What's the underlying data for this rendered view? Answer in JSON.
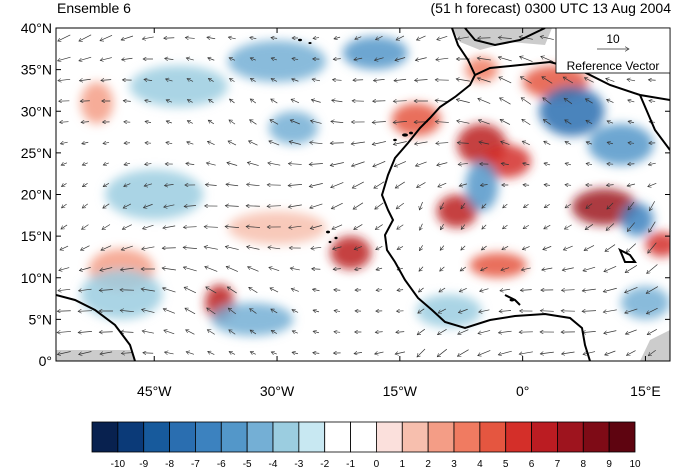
{
  "title_left": "Ensemble 6",
  "title_right": "(51 h forecast) 0300 UTC 13 Aug 2004",
  "map": {
    "lat_ticks": [
      "40°N",
      "35°N",
      "30°N",
      "25°N",
      "20°N",
      "15°N",
      "10°N",
      "5°N",
      "0°"
    ],
    "lat_values": [
      40,
      35,
      30,
      25,
      20,
      15,
      10,
      5,
      0
    ],
    "lon_ticks": [
      "45°W",
      "30°W",
      "15°W",
      "0°",
      "15°E"
    ],
    "lon_values": [
      -45,
      -30,
      -15,
      0,
      15
    ],
    "lon_range": [
      -57,
      18
    ],
    "lat_range": [
      0,
      40
    ]
  },
  "reference_vector": {
    "magnitude": "10",
    "label": "Reference Vector"
  },
  "colorbar": {
    "labels": [
      "-10",
      "-9",
      "-8",
      "-7",
      "-6",
      "-5",
      "-4",
      "-3",
      "-2",
      "-1",
      "0",
      "1",
      "2",
      "3",
      "4",
      "5",
      "6",
      "7",
      "8",
      "9",
      "10"
    ],
    "colors": [
      "#08214f",
      "#0b3a78",
      "#175a9c",
      "#2a6eb0",
      "#3c82bf",
      "#5397c9",
      "#74afd5",
      "#9bcde0",
      "#c8e8f2",
      "#ffffff",
      "#ffffff",
      "#fbe0dc",
      "#f7bfae",
      "#f49d86",
      "#f07b61",
      "#e55640",
      "#d42f29",
      "#bb1c22",
      "#9e141e",
      "#7e0b16",
      "#5e0410"
    ]
  },
  "colors": {
    "land_outline": "#000000",
    "missing_land": "#cccccc",
    "vectors": "#333333"
  },
  "anomaly_blobs": [
    {
      "lon": -5,
      "lat": 26,
      "rx": 3,
      "ry": 2.5,
      "level": 7
    },
    {
      "lon": -2,
      "lat": 24,
      "rx": 3,
      "ry": 2,
      "level": 6
    },
    {
      "lon": -8,
      "lat": 18,
      "rx": 2.5,
      "ry": 2,
      "level": 7
    },
    {
      "lon": 10,
      "lat": 18.5,
      "rx": 4,
      "ry": 2.2,
      "level": 8
    },
    {
      "lon": -21,
      "lat": 13,
      "rx": 2.5,
      "ry": 2,
      "level": 7
    },
    {
      "lon": -37,
      "lat": 7,
      "rx": 1.8,
      "ry": 2.2,
      "level": 7
    },
    {
      "lon": -3,
      "lat": 11.5,
      "rx": 3.5,
      "ry": 1.5,
      "level": 5
    },
    {
      "lon": 17,
      "lat": 14,
      "rx": 2,
      "ry": 1.5,
      "level": 6
    },
    {
      "lon": -13,
      "lat": 29,
      "rx": 3,
      "ry": 2,
      "level": 5
    },
    {
      "lon": -49,
      "lat": 11,
      "rx": 4,
      "ry": 2.5,
      "level": 3
    },
    {
      "lon": 4,
      "lat": 33.5,
      "rx": 4,
      "ry": 2,
      "level": 5
    },
    {
      "lon": -52,
      "lat": 31,
      "rx": 2,
      "ry": 2.5,
      "level": 3
    },
    {
      "lon": -30,
      "lat": 16,
      "rx": 6,
      "ry": 2,
      "level": 2
    },
    {
      "lon": -5,
      "lat": 35,
      "rx": 2,
      "ry": 1.5,
      "level": 4
    },
    {
      "lon": 6,
      "lat": 30,
      "rx": 4,
      "ry": 3,
      "level": -6
    },
    {
      "lon": 12,
      "lat": 26,
      "rx": 4,
      "ry": 2.5,
      "level": -4
    },
    {
      "lon": 14,
      "lat": 17,
      "rx": 2,
      "ry": 2,
      "level": -5
    },
    {
      "lon": -30,
      "lat": 36,
      "rx": 6,
      "ry": 2.5,
      "level": -3
    },
    {
      "lon": -42,
      "lat": 33,
      "rx": 6,
      "ry": 2.5,
      "level": -2
    },
    {
      "lon": -49,
      "lat": 8,
      "rx": 5,
      "ry": 3,
      "level": -2
    },
    {
      "lon": -33,
      "lat": 5,
      "rx": 5,
      "ry": 2,
      "level": -3
    },
    {
      "lon": -9,
      "lat": 6,
      "rx": 4,
      "ry": 2,
      "level": -2
    },
    {
      "lon": -28,
      "lat": 28,
      "rx": 3,
      "ry": 2,
      "level": -3
    },
    {
      "lon": -5,
      "lat": 21,
      "rx": 2,
      "ry": 3,
      "level": -4
    },
    {
      "lon": -45,
      "lat": 20,
      "rx": 6,
      "ry": 3,
      "level": -2
    },
    {
      "lon": -18,
      "lat": 37,
      "rx": 4,
      "ry": 2,
      "level": -4
    },
    {
      "lon": 15,
      "lat": 7,
      "rx": 3,
      "ry": 2,
      "level": -3
    }
  ]
}
